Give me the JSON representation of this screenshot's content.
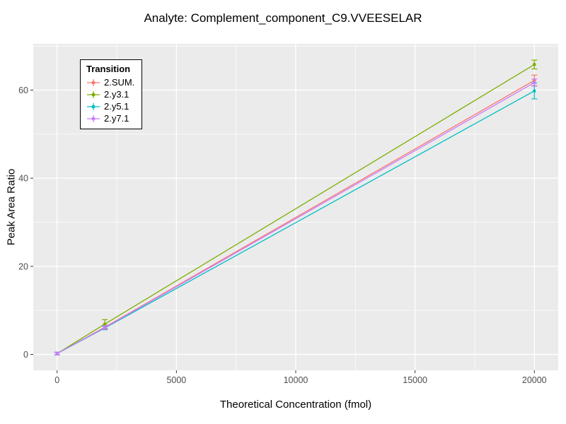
{
  "chart_data": {
    "type": "line",
    "title": "Analyte: Complement_component_C9.VVEESELAR",
    "xlabel": "Theoretical Concentration (fmol)",
    "ylabel": "Peak Area Ratio",
    "legend_title": "Transition",
    "legend_position": "top-left-inside",
    "grid": true,
    "panel_background": "#EBEBEB",
    "gridline_color": "#FFFFFF",
    "tick_label_color": "#4D4D4D",
    "x_ticks": [
      0,
      5000,
      10000,
      15000,
      20000
    ],
    "x_minor_ticks": [
      2500,
      7500,
      12500,
      17500
    ],
    "y_ticks": [
      0,
      20,
      40,
      60
    ],
    "y_minor_ticks": [
      10,
      30,
      50,
      70
    ],
    "xdomain": [
      -1000,
      21000
    ],
    "ydomain": [
      -3.6,
      70.5
    ],
    "series": [
      {
        "name": "2.SUM.",
        "color": "#F8766D",
        "x": [
          0,
          2000,
          20000
        ],
        "y": [
          0.2,
          6.2,
          62.2
        ],
        "yerr": [
          0.3,
          0.5,
          1.2
        ]
      },
      {
        "name": "2.y3.1",
        "color": "#7CAE00",
        "x": [
          0,
          2000,
          20000
        ],
        "y": [
          0.2,
          6.9,
          65.8
        ],
        "yerr": [
          0.3,
          1.0,
          1.0
        ]
      },
      {
        "name": "2.y5.1",
        "color": "#00BFC4",
        "x": [
          0,
          2000,
          20000
        ],
        "y": [
          0.2,
          6.0,
          59.8
        ],
        "yerr": [
          0.3,
          0.4,
          1.8
        ]
      },
      {
        "name": "2.y7.1",
        "color": "#C77CFF",
        "x": [
          0,
          2000,
          20000
        ],
        "y": [
          0.2,
          6.1,
          61.7
        ],
        "yerr": [
          0.3,
          0.4,
          0.8
        ]
      }
    ]
  }
}
